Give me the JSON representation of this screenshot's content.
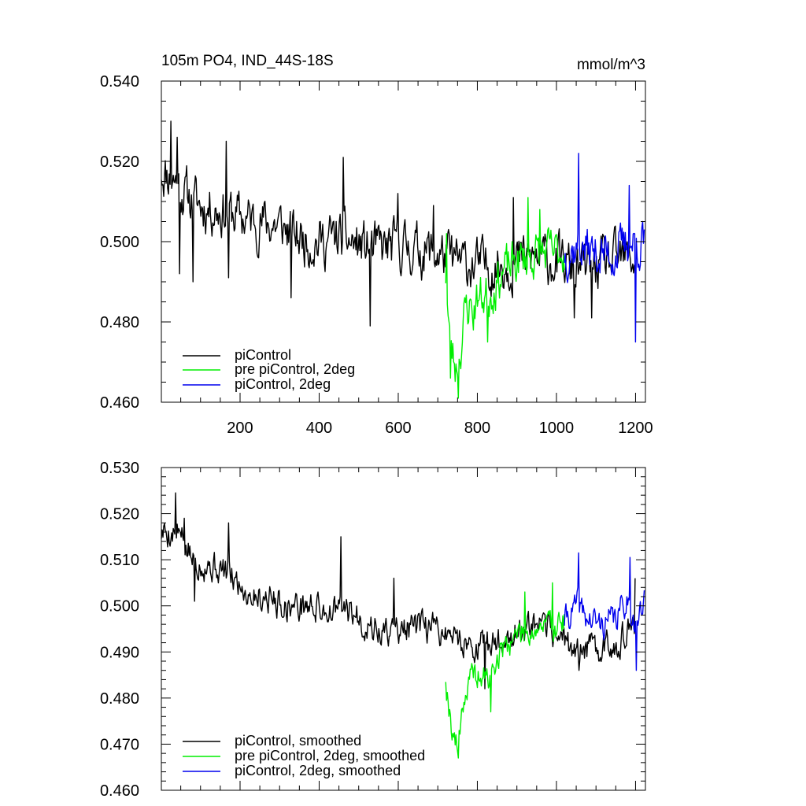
{
  "figure": {
    "background": "#ffffff"
  },
  "chart_data": [
    {
      "type": "line",
      "title": "105m PO4, IND_44S-18S",
      "units": "mmol/m^3",
      "xlabel": "",
      "ylabel": "",
      "xlim": [
        1,
        1225
      ],
      "ylim": [
        0.46,
        0.54
      ],
      "xticks": [
        200,
        400,
        600,
        800,
        1000,
        1200
      ],
      "xtick_labels": [
        "200",
        "400",
        "600",
        "800",
        "1000",
        "1200"
      ],
      "yticks": [
        0.46,
        0.48,
        0.5,
        0.52,
        0.54
      ],
      "ytick_labels": [
        "0.460",
        "0.480",
        "0.500",
        "0.520",
        "0.540"
      ],
      "grid": false,
      "legend_position": "bottom-left",
      "series": [
        {
          "name": "piControl",
          "color": "#000000",
          "x_start": 1,
          "x_end": 1200,
          "anchors": [
            [
              1,
              0.518
            ],
            [
              30,
              0.516
            ],
            [
              60,
              0.512
            ],
            [
              100,
              0.509
            ],
            [
              150,
              0.508
            ],
            [
              200,
              0.506
            ],
            [
              250,
              0.505
            ],
            [
              300,
              0.504
            ],
            [
              350,
              0.501
            ],
            [
              400,
              0.5
            ],
            [
              450,
              0.501
            ],
            [
              500,
              0.499
            ],
            [
              550,
              0.498
            ],
            [
              600,
              0.499
            ],
            [
              650,
              0.498
            ],
            [
              700,
              0.497
            ],
            [
              750,
              0.495
            ],
            [
              800,
              0.494
            ],
            [
              850,
              0.494
            ],
            [
              900,
              0.495
            ],
            [
              950,
              0.496
            ],
            [
              1000,
              0.495
            ],
            [
              1050,
              0.493
            ],
            [
              1100,
              0.494
            ],
            [
              1150,
              0.495
            ],
            [
              1200,
              0.496
            ]
          ],
          "amplitude": 0.0068,
          "seed": 11,
          "events": [
            [
              25,
              0.53
            ],
            [
              42,
              0.526
            ],
            [
              47,
              0.492
            ],
            [
              82,
              0.49
            ],
            [
              165,
              0.525
            ],
            [
              172,
              0.491
            ],
            [
              330,
              0.486
            ],
            [
              462,
              0.521
            ],
            [
              530,
              0.479
            ],
            [
              600,
              0.512
            ],
            [
              690,
              0.509
            ],
            [
              892,
              0.511
            ],
            [
              1045,
              0.481
            ],
            [
              1090,
              0.481
            ]
          ]
        },
        {
          "name": "pre piControl, 2deg",
          "color": "#00ee00",
          "x_start": 720,
          "x_end": 1020,
          "anchors": [
            [
              720,
              0.492
            ],
            [
              730,
              0.475
            ],
            [
              745,
              0.469
            ],
            [
              755,
              0.472
            ],
            [
              770,
              0.483
            ],
            [
              800,
              0.486
            ],
            [
              830,
              0.487
            ],
            [
              860,
              0.492
            ],
            [
              900,
              0.495
            ],
            [
              950,
              0.497
            ],
            [
              1000,
              0.497
            ],
            [
              1020,
              0.498
            ]
          ],
          "amplitude": 0.0062,
          "seed": 23,
          "events": [
            [
              722,
              0.502
            ],
            [
              733,
              0.466
            ],
            [
              752,
              0.461
            ],
            [
              790,
              0.478
            ],
            [
              826,
              0.475
            ],
            [
              928,
              0.511
            ],
            [
              958,
              0.508
            ]
          ]
        },
        {
          "name": "piControl, 2deg",
          "color": "#0000ee",
          "x_start": 1020,
          "x_end": 1222,
          "anchors": [
            [
              1020,
              0.497
            ],
            [
              1060,
              0.499
            ],
            [
              1100,
              0.497
            ],
            [
              1150,
              0.497
            ],
            [
              1190,
              0.5
            ],
            [
              1222,
              0.499
            ]
          ],
          "amplitude": 0.0062,
          "seed": 37,
          "events": [
            [
              1056,
              0.522
            ],
            [
              1185,
              0.514
            ],
            [
              1200,
              0.475
            ],
            [
              1218,
              0.505
            ]
          ]
        }
      ]
    },
    {
      "type": "line",
      "title": "",
      "xlabel": "",
      "ylabel": "",
      "xlim": [
        1,
        1225
      ],
      "ylim": [
        0.46,
        0.53
      ],
      "xticks": [
        200,
        400,
        600,
        800,
        1000,
        1200
      ],
      "xtick_labels": [],
      "yticks": [
        0.46,
        0.47,
        0.48,
        0.49,
        0.5,
        0.51,
        0.52,
        0.53
      ],
      "ytick_labels": [
        "0.460",
        "0.470",
        "0.480",
        "0.490",
        "0.500",
        "0.510",
        "0.520",
        "0.530"
      ],
      "grid": false,
      "legend_position": "bottom-left",
      "series": [
        {
          "name": "piControl, smoothed",
          "color": "#000000",
          "x_start": 1,
          "x_end": 1200,
          "anchors": [
            [
              1,
              0.516
            ],
            [
              40,
              0.516
            ],
            [
              80,
              0.51
            ],
            [
              120,
              0.509
            ],
            [
              170,
              0.507
            ],
            [
              220,
              0.503
            ],
            [
              270,
              0.502
            ],
            [
              320,
              0.5
            ],
            [
              370,
              0.5
            ],
            [
              420,
              0.499
            ],
            [
              470,
              0.499
            ],
            [
              520,
              0.496
            ],
            [
              560,
              0.494
            ],
            [
              600,
              0.495
            ],
            [
              650,
              0.495
            ],
            [
              700,
              0.495
            ],
            [
              750,
              0.493
            ],
            [
              800,
              0.491
            ],
            [
              850,
              0.492
            ],
            [
              900,
              0.494
            ],
            [
              950,
              0.495
            ],
            [
              1000,
              0.494
            ],
            [
              1050,
              0.49
            ],
            [
              1100,
              0.491
            ],
            [
              1150,
              0.492
            ],
            [
              1200,
              0.495
            ]
          ],
          "amplitude": 0.0036,
          "seed": 5,
          "events": [
            [
              38,
              0.5245
            ],
            [
              60,
              0.519
            ],
            [
              85,
              0.501
            ],
            [
              172,
              0.518
            ],
            [
              455,
              0.515
            ],
            [
              590,
              0.506
            ],
            [
              820,
              0.482
            ],
            [
              1058,
              0.486
            ],
            [
              1200,
              0.506
            ]
          ]
        },
        {
          "name": "pre piControl, 2deg, smoothed",
          "color": "#00ee00",
          "x_start": 720,
          "x_end": 1020,
          "anchors": [
            [
              720,
              0.484
            ],
            [
              735,
              0.474
            ],
            [
              750,
              0.469
            ],
            [
              762,
              0.479
            ],
            [
              790,
              0.485
            ],
            [
              830,
              0.484
            ],
            [
              860,
              0.49
            ],
            [
              900,
              0.494
            ],
            [
              950,
              0.495
            ],
            [
              1000,
              0.496
            ],
            [
              1020,
              0.497
            ]
          ],
          "amplitude": 0.0033,
          "seed": 19,
          "events": [
            [
              720,
              0.4835
            ],
            [
              752,
              0.467
            ],
            [
              835,
              0.477
            ],
            [
              920,
              0.503
            ],
            [
              990,
              0.505
            ]
          ]
        },
        {
          "name": "piControl, 2deg, smoothed",
          "color": "#0000ee",
          "x_start": 1020,
          "x_end": 1222,
          "anchors": [
            [
              1020,
              0.497
            ],
            [
              1055,
              0.5
            ],
            [
              1080,
              0.497
            ],
            [
              1110,
              0.496
            ],
            [
              1150,
              0.497
            ],
            [
              1180,
              0.502
            ],
            [
              1200,
              0.496
            ],
            [
              1222,
              0.5
            ]
          ],
          "amplitude": 0.0035,
          "seed": 41,
          "events": [
            [
              1057,
              0.5115
            ],
            [
              1187,
              0.5105
            ],
            [
              1202,
              0.486
            ],
            [
              1220,
              0.501
            ]
          ]
        }
      ]
    }
  ]
}
